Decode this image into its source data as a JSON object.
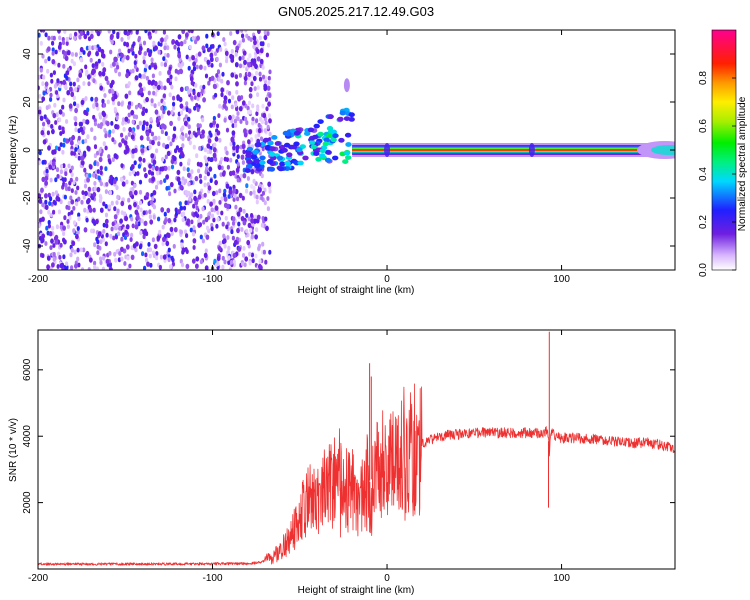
{
  "figure_title": "GN05.2025.217.12.49.G03",
  "chart_data": [
    {
      "type": "heatmap",
      "xlabel": "Height of straight line (km)",
      "ylabel": "Frequency (Hz)",
      "xlim": [
        -200,
        165
      ],
      "ylim": [
        -50,
        50
      ],
      "x_ticks": [
        -200,
        -100,
        0,
        100
      ],
      "x_tick_labels": [
        "-200",
        "-100",
        "0",
        "100"
      ],
      "y_ticks": [
        -40,
        -20,
        0,
        20,
        40
      ],
      "y_tick_labels": [
        "-40",
        "-20",
        "0",
        "20",
        "40"
      ],
      "grid": false,
      "colorbar": {
        "label": "Normalized spectral amplitude",
        "range": [
          0,
          1
        ],
        "ticks": [
          0,
          0.2,
          0.4,
          0.6,
          0.8
        ],
        "tick_labels": [
          "0.0",
          "0.2",
          "0.4",
          "0.6",
          "0.8"
        ],
        "colormap": "rainbow"
      },
      "features": [
        {
          "x_range": [
            -200,
            -67
          ],
          "freq_range": [
            -50,
            50
          ],
          "amplitude": 0.12
        },
        {
          "x_range": [
            -80,
            -20
          ],
          "freq_range": [
            -8,
            18
          ],
          "amplitude": 0.35
        },
        {
          "x_range": [
            -20,
            165
          ],
          "freq": 0,
          "amplitude": 0.85
        },
        {
          "x": 83,
          "freq": 0,
          "amplitude": 0.2
        },
        {
          "x": -23,
          "freq": 27,
          "amplitude": 0.1
        },
        {
          "x": 0,
          "freq": 0,
          "amplitude": 0.2
        }
      ]
    },
    {
      "type": "line",
      "xlabel": "Height of straight line (km)",
      "ylabel": "SNR (10 * v/v)",
      "xlim": [
        -200,
        165
      ],
      "ylim": [
        0,
        7200
      ],
      "x_ticks": [
        -200,
        -100,
        0,
        100
      ],
      "x_tick_labels": [
        "-200",
        "-100",
        "0",
        "100"
      ],
      "y_ticks": [
        2000,
        4000,
        6000
      ],
      "y_tick_labels": [
        "2000",
        "4000",
        "6000"
      ],
      "grid": false,
      "color": "#ee3030",
      "x": [
        -200,
        -180,
        -160,
        -140,
        -120,
        -100,
        -90,
        -80,
        -72,
        -65,
        -60,
        -55,
        -50,
        -45,
        -40,
        -35,
        -30,
        -25,
        -20,
        -17,
        -15,
        -12,
        -9,
        -5,
        0,
        5,
        10,
        15,
        20,
        25,
        30,
        40,
        50,
        60,
        70,
        80,
        85,
        90,
        92,
        93,
        94,
        95,
        96,
        100,
        110,
        120,
        130,
        140,
        150,
        160,
        165
      ],
      "values": [
        150,
        150,
        150,
        150,
        150,
        160,
        160,
        160,
        200,
        400,
        600,
        1000,
        1600,
        2100,
        2300,
        2600,
        2700,
        2500,
        2300,
        2000,
        2100,
        2600,
        2700,
        2900,
        3000,
        3300,
        3400,
        3600,
        3800,
        3900,
        4000,
        4050,
        4100,
        4100,
        4100,
        4100,
        4100,
        4100,
        4200,
        3500,
        4200,
        4100,
        4000,
        3950,
        3950,
        3900,
        3850,
        3800,
        3800,
        3700,
        3650
      ],
      "spikes": [
        {
          "x": -10,
          "value": 6200
        },
        {
          "x": -9,
          "value": 5800
        },
        {
          "x": 93,
          "value": 7150
        },
        {
          "x": 92.5,
          "value": 1850
        }
      ]
    }
  ]
}
